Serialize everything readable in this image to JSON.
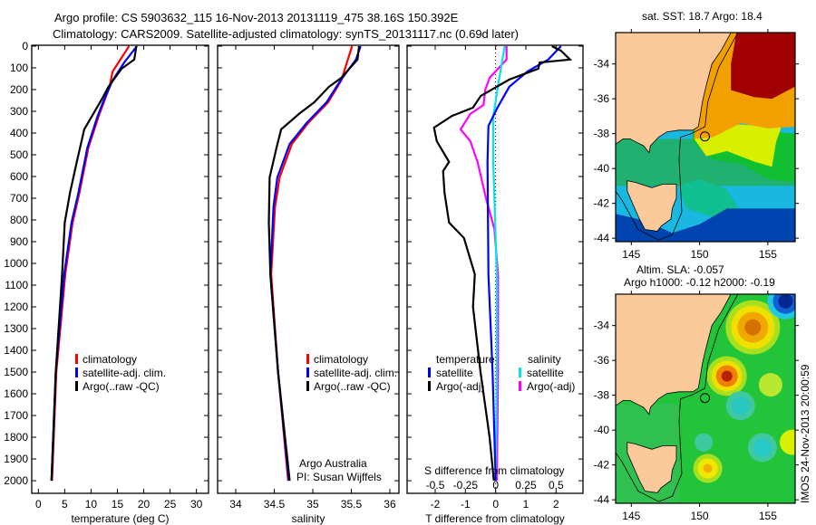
{
  "title": {
    "line1": "Argo profile: CS 5903632_115 16-Nov-2013 20131119_475 38.16S 150.392E",
    "line2": "Climatology: CARS2009. Satellite-adjusted climatology: synTS_20131117.nc (0.69d later)"
  },
  "colors": {
    "climatology": "#ff0000",
    "satellite": "#0000ff",
    "argo": "#000000",
    "s_satellite": "#00e5ee",
    "s_argo": "#ff00ff"
  },
  "chart_data": [
    {
      "type": "line",
      "xlabel": "temperature (deg C)",
      "ylabel": "",
      "xlim": [
        -1.26,
        32.3
      ],
      "ylim": [
        2058,
        -4
      ],
      "xticks": [
        0,
        5,
        10,
        15,
        20,
        25,
        30
      ],
      "yticks": [
        0,
        100,
        200,
        300,
        400,
        500,
        600,
        700,
        800,
        900,
        1000,
        1100,
        1200,
        1300,
        1400,
        1500,
        1600,
        1700,
        1800,
        1900,
        2000
      ],
      "legend": [
        "climatology",
        "satellite-adj. clim.",
        "Argo(..raw -QC)"
      ],
      "series": [
        {
          "name": "climatology",
          "depth": [
            0,
            8,
            117,
            187,
            325,
            467,
            675,
            812,
            1050,
            1500,
            2000
          ],
          "values": [
            17.2,
            17.0,
            14.1,
            13.5,
            11.4,
            9.5,
            7.8,
            6.5,
            5.1,
            3.4,
            2.6
          ]
        },
        {
          "name": "satellite-adj. clim.",
          "depth": [
            0,
            75,
            158,
            250,
            325,
            467,
            675,
            812,
            1050,
            1500,
            2000
          ],
          "values": [
            18.7,
            16.3,
            14.1,
            12.4,
            11.2,
            9.3,
            7.6,
            6.3,
            4.9,
            3.3,
            2.5
          ]
        },
        {
          "name": "Argo(..raw -QC)",
          "depth": [
            0,
            62,
            104,
            187,
            242,
            312,
            383,
            533,
            675,
            812,
            1050,
            1500,
            2000
          ],
          "values": [
            18.6,
            18.2,
            15.8,
            13.3,
            12.1,
            10.4,
            8.7,
            7.3,
            6.0,
            5.0,
            4.5,
            3.3,
            2.5
          ]
        }
      ]
    },
    {
      "type": "line",
      "xlabel": "salinity",
      "xlim": [
        33.765,
        36.118
      ],
      "ylim": [
        2058,
        -4
      ],
      "xticks": [
        34,
        34.5,
        35,
        35.5,
        36
      ],
      "legend": [
        "climatology",
        "satellite-adj. clim.",
        "Argo(..raw -QC)"
      ],
      "annotation": [
        "Argo Australia",
        "PI: Susan Wijffels"
      ],
      "series": [
        {
          "name": "climatology",
          "depth": [
            0,
            158,
            258,
            354,
            450,
            604,
            742,
            1050,
            1500,
            2000
          ],
          "values": [
            35.51,
            35.37,
            35.2,
            34.94,
            34.73,
            34.57,
            34.51,
            34.46,
            34.55,
            34.68
          ]
        },
        {
          "name": "satellite-adj. clim.",
          "depth": [
            0,
            62,
            158,
            258,
            354,
            450,
            604,
            742,
            1050,
            1500,
            2000
          ],
          "values": [
            35.62,
            35.56,
            35.36,
            35.18,
            34.92,
            34.7,
            34.54,
            34.49,
            34.45,
            34.55,
            34.69
          ]
        },
        {
          "name": "Argo(..raw -QC)",
          "depth": [
            0,
            62,
            146,
            187,
            258,
            312,
            383,
            467,
            604,
            812,
            1050,
            1500,
            2000
          ],
          "values": [
            35.6,
            35.58,
            35.37,
            35.21,
            35.02,
            34.82,
            34.59,
            34.53,
            34.44,
            34.43,
            34.45,
            34.55,
            34.7
          ]
        }
      ]
    },
    {
      "type": "line",
      "xlabel": "T difference from climatology",
      "xlabel2": "S difference from climatology",
      "xlim": [
        -2.93,
        2.89
      ],
      "x2lim": [
        -0.733,
        0.723
      ],
      "ylim": [
        2058,
        -4
      ],
      "xticks": [
        -2,
        -1,
        0,
        1,
        2
      ],
      "x2ticks": [
        -0.5,
        -0.25,
        0,
        0.25,
        0.5
      ],
      "legend_t_title": "temperature",
      "legend_s_title": "salinity",
      "legend": [
        "satellite",
        "Argo(-adj)",
        "satellite",
        "Argo(-adj)"
      ],
      "series": [
        {
          "name": "T satellite",
          "axis": "T",
          "depth": [
            0,
            62,
            117,
            187,
            283,
            367,
            533,
            1050,
            1500,
            2000
          ],
          "values": [
            2.16,
            1.74,
            1.05,
            0.45,
            0.06,
            -0.24,
            -0.27,
            -0.24,
            -0.1,
            0
          ]
        },
        {
          "name": "T Argo(-adj)",
          "axis": "T",
          "depth": [
            0,
            21,
            62,
            75,
            104,
            154,
            229,
            283,
            321,
            375,
            437,
            533,
            575,
            675,
            812,
            883,
            1050,
            1200,
            1500,
            1800,
            2000
          ],
          "values": [
            1.86,
            2.16,
            2.46,
            1.46,
            1.41,
            0.45,
            -0.49,
            -0.75,
            -1.44,
            -2.04,
            -1.95,
            -1.54,
            -1.74,
            -1.69,
            -1.54,
            -1.05,
            -0.69,
            -0.75,
            -0.5,
            -0.2,
            -0.06
          ]
        },
        {
          "name": "S satellite",
          "axis": "S",
          "depth": [
            0,
            146,
            325,
            533,
            1050,
            1500,
            2000
          ],
          "values": [
            0.075,
            0.03,
            -0.02,
            -0.02,
            0.01,
            0.01,
            0
          ]
        },
        {
          "name": "S Argo(-adj)",
          "axis": "S",
          "depth": [
            0,
            62,
            146,
            200,
            271,
            312,
            383,
            437,
            533,
            700,
            842,
            1050,
            1500,
            2000
          ],
          "values": [
            0.09,
            0.09,
            -0.05,
            -0.085,
            -0.1,
            -0.21,
            -0.29,
            -0.21,
            -0.15,
            -0.08,
            -0.01,
            0.02,
            0.02,
            0.01
          ]
        }
      ]
    }
  ],
  "maps": {
    "sst": {
      "title": "sat. SST: 18.7 Argo: 18.4"
    },
    "sla": {
      "title1": "Altim. SLA: -0.057",
      "title2": "Argo h1000: -0.12 h2000: -0.19"
    },
    "lon_ticks": [
      "145",
      "150",
      "155"
    ],
    "lat_ticks": [
      "-34",
      "-36",
      "-38",
      "-40",
      "-42",
      "-44"
    ],
    "float_position": {
      "lon": 150.392,
      "lat": -38.16
    }
  },
  "footer": "IMOS 24-Nov-2013 20:00:59"
}
